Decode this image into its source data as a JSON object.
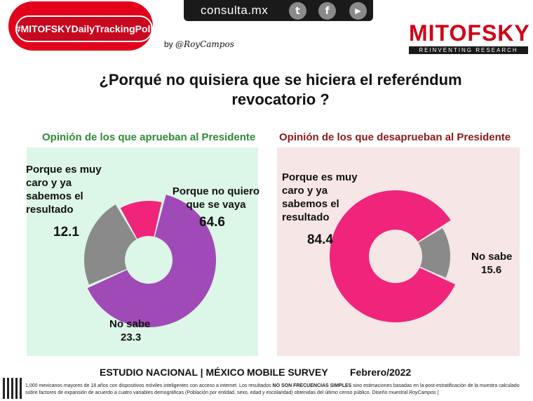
{
  "header": {
    "site": "consulta.mx",
    "social_icons": [
      "twitter-icon",
      "facebook-icon",
      "youtube-icon"
    ],
    "social_glyphs": [
      "t",
      "f",
      "▶"
    ],
    "hashtag": "#MITOFSKYDailyTrackingPoll",
    "byline_prefix": "by",
    "byline_name": "@RoyCampos",
    "brand": "MITOFSKY",
    "brand_tagline": "REINVENTING RESEARCH"
  },
  "question": {
    "line1": "¿Porqué no quisiera que se hiciera el referéndum",
    "line2": "revocatorio ?"
  },
  "chart_data": [
    {
      "type": "pie",
      "title": "Opinión de los que aprueban al Presidente",
      "categories": [
        "Porque no quiero que se vaya",
        "Porque es muy caro y ya sabemos el resultado",
        "No sabe"
      ],
      "values": [
        64.6,
        12.1,
        23.3
      ],
      "colors": [
        "#a04ab8",
        "#f0247a",
        "#8a8a8a"
      ]
    },
    {
      "type": "pie",
      "title": "Opinión de los que desaprueban al Presidente",
      "categories": [
        "Porque es muy caro y ya sabemos el resultado",
        "No sabe"
      ],
      "values": [
        84.4,
        15.6
      ],
      "colors": [
        "#f0247a",
        "#8a8a8a"
      ]
    }
  ],
  "labels": {
    "left_quiero_line1": "Porque no quiero",
    "left_quiero_line2": "que se vaya",
    "left_quiero_val": "64.6",
    "left_caro_line1": "Porque es muy",
    "left_caro_line2": "caro y ya",
    "left_caro_line3": "sabemos el",
    "left_caro_line4": "resultado",
    "left_caro_val": "12.1",
    "left_nosabe": "No sabe",
    "left_nosabe_val": "23.3",
    "right_caro_line1": "Porque es muy",
    "right_caro_line2": "caro y ya",
    "right_caro_line3": "sabemos el",
    "right_caro_line4": "resultado",
    "right_caro_val": "84.4",
    "right_nosabe": "No sabe",
    "right_nosabe_val": "15.6"
  },
  "footer": {
    "study": "ESTUDIO NACIONAL | MÉXICO",
    "survey": "MOBILE SURVEY",
    "date": "Febrero/2022",
    "methodology_a": "1,000 mexicanos mayores de 18 años con dispositivos móviles inteligentes con acceso a internet. Los resultados",
    "methodology_bold": "NO SON FRECUENCIAS SIMPLES",
    "methodology_b": "sino estimaciones basadas en la post-estratificación de la muestra calculado sobre factores de expansión de acuerdo a cuatro variables demográficas (Población por entidad, sexo, edad y escolaridad) obtenidas del último censo público. Diseño muestral",
    "methodology_sign": "RoyCampos",
    "methodology_end": "|"
  }
}
